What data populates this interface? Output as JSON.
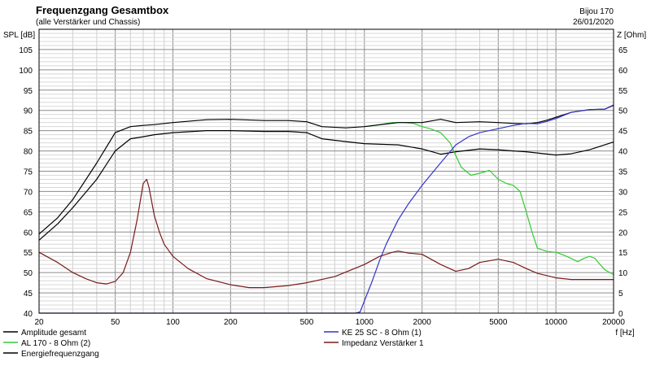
{
  "chart_data": {
    "type": "line",
    "title": "Frequenzgang Gesamtbox",
    "subtitle": "(alle Verstärker und Chassis)",
    "project": "Bijou 170",
    "date": "26/01/2020",
    "ylabel_left": "SPL [dB]",
    "ylabel_right": "Z [Ohm]",
    "xlabel": "f [Hz]",
    "x_scale": "log",
    "xlim": [
      20,
      20000
    ],
    "ylim_left": [
      40,
      110
    ],
    "ylim_right": [
      0,
      70
    ],
    "grid": true,
    "x_ticks": [
      {
        "v": 20,
        "label": "20"
      },
      {
        "v": 50,
        "label": "50"
      },
      {
        "v": 100,
        "label": "100"
      },
      {
        "v": 200,
        "label": "200"
      },
      {
        "v": 500,
        "label": "500"
      },
      {
        "v": 1000,
        "label": "1000"
      },
      {
        "v": 2000,
        "label": "2000"
      },
      {
        "v": 5000,
        "label": "5000"
      },
      {
        "v": 10000,
        "label": "10000"
      },
      {
        "v": 20000,
        "label": "20000"
      }
    ],
    "y_ticks_left": [
      "40",
      "45",
      "50",
      "55",
      "60",
      "65",
      "70",
      "75",
      "80",
      "85",
      "90",
      "95",
      "100",
      "105"
    ],
    "y_ticks_right": [
      "0",
      "5",
      "10",
      "15",
      "20",
      "25",
      "30",
      "35",
      "40",
      "45",
      "50",
      "55",
      "60",
      "65"
    ],
    "legend_placement": "bottom",
    "series": [
      {
        "name": "Amplitude gesamt",
        "color": "#000000",
        "axis": "left",
        "x": [
          20,
          25,
          30,
          40,
          50,
          60,
          70,
          80,
          100,
          150,
          200,
          300,
          400,
          500,
          600,
          800,
          1000,
          1500,
          2000,
          2500,
          3000,
          4000,
          5000,
          6000,
          7000,
          8000,
          10000,
          12000,
          15000,
          20000
        ],
        "y": [
          58,
          62,
          66,
          73,
          80,
          83,
          83.5,
          84,
          84.5,
          85,
          85,
          84.8,
          84.8,
          84.5,
          83,
          82.3,
          81.8,
          81.5,
          80.5,
          79.2,
          79.8,
          80.5,
          80.3,
          80,
          79.8,
          79.5,
          79,
          79.3,
          80.3,
          82.2
        ]
      },
      {
        "name": "AL 170 - 8 Ohm (2)",
        "color": "#33cc33",
        "axis": "left",
        "x": [
          1000,
          1200,
          1400,
          1600,
          1800,
          2000,
          2200,
          2500,
          2800,
          3200,
          3600,
          4000,
          4500,
          5000,
          5500,
          6000,
          6500,
          7000,
          7500,
          8000,
          9000,
          10000,
          11000,
          12000,
          13000,
          14000,
          15000,
          16000,
          17000,
          18000,
          20000
        ],
        "y": [
          86,
          86.5,
          87,
          87,
          86.8,
          86,
          85.5,
          84.5,
          82,
          76,
          74,
          74.5,
          75.2,
          73,
          72,
          71.5,
          70,
          65,
          60,
          56,
          55.2,
          55,
          54.3,
          53.5,
          52.7,
          53.5,
          54,
          53.5,
          52,
          50.7,
          49.5
        ]
      },
      {
        "name": "Energiefrequenzgang",
        "color": "#000000",
        "axis": "left",
        "x": [
          20,
          25,
          30,
          40,
          50,
          60,
          70,
          80,
          100,
          150,
          200,
          300,
          400,
          500,
          600,
          800,
          1000,
          1500,
          2000,
          2500,
          3000,
          4000,
          5000,
          6000,
          7000,
          8000,
          9000,
          10000,
          12000,
          15000,
          18000,
          20000
        ],
        "y": [
          59.5,
          63.5,
          68,
          77,
          84.5,
          86,
          86.3,
          86.5,
          87,
          87.7,
          87.8,
          87.5,
          87.5,
          87.2,
          86,
          85.7,
          86,
          87,
          87,
          87.8,
          87,
          87.2,
          87,
          86.8,
          86.7,
          87,
          87.6,
          88.3,
          89.5,
          90.2,
          90.3,
          91.3
        ]
      },
      {
        "name": "KE 25 SC - 8 Ohm   (1)",
        "color": "#3333cc",
        "axis": "left",
        "x": [
          20,
          900,
          950,
          1000,
          1100,
          1200,
          1300,
          1500,
          1700,
          2000,
          2300,
          2600,
          3000,
          3500,
          4000,
          5000,
          6000,
          7000,
          8000,
          9000,
          10000,
          12000,
          15000,
          18000,
          20000
        ],
        "y": [
          40,
          40,
          40.3,
          43,
          48,
          53,
          57,
          63,
          67,
          71.5,
          75,
          78,
          81.5,
          83.5,
          84.5,
          85.5,
          86.3,
          86.8,
          86.7,
          87.3,
          88,
          89.5,
          90.2,
          90.3,
          91.2
        ]
      },
      {
        "name": "Impedanz Verstärker 1",
        "color": "#7a1a1a",
        "axis": "right",
        "x": [
          20,
          25,
          30,
          35,
          40,
          45,
          50,
          55,
          60,
          65,
          70,
          73,
          75,
          80,
          85,
          90,
          100,
          120,
          150,
          200,
          250,
          300,
          400,
          500,
          700,
          1000,
          1200,
          1400,
          1500,
          1700,
          2000,
          2500,
          3000,
          3500,
          4000,
          5000,
          6000,
          7000,
          8000,
          10000,
          12000,
          15000,
          20000
        ],
        "y": [
          15,
          12.5,
          10,
          8.5,
          7.5,
          7.2,
          7.8,
          10,
          15,
          23,
          32,
          33,
          31,
          24,
          20,
          17,
          14,
          11,
          8.5,
          7,
          6.3,
          6.3,
          6.8,
          7.5,
          9,
          12,
          14,
          15,
          15.3,
          14.8,
          14.5,
          12,
          10.3,
          11,
          12.5,
          13.3,
          12.5,
          11,
          9.8,
          8.7,
          8.3,
          8.3,
          8.3
        ]
      }
    ]
  }
}
